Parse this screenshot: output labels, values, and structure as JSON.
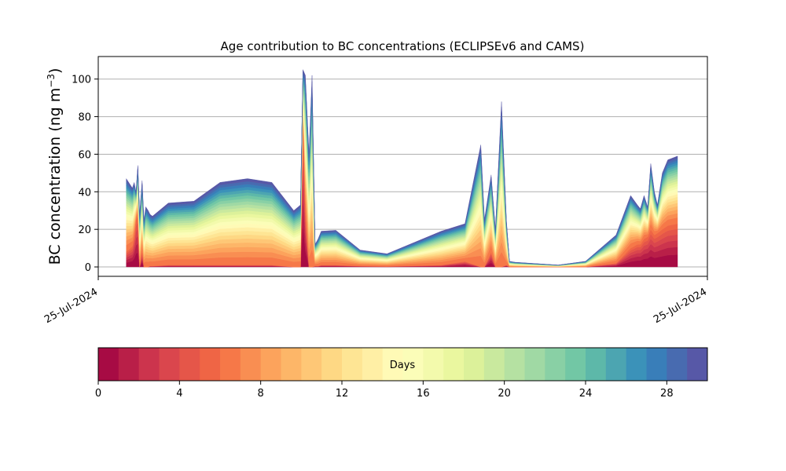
{
  "chart_data": {
    "type": "area",
    "title": "Age contribution to BC concentrations (ECLIPSEv6 and CAMS)",
    "ylabel": "BC concentration (ng m",
    "ylabel_superscript": "−3",
    "ylabel_close": ")",
    "xlabel": "",
    "ylim": [
      -5,
      112
    ],
    "yticks": [
      0,
      20,
      40,
      60,
      80,
      100
    ],
    "grid": "y",
    "x_tick_labels": [
      "25-Jul-2024",
      "25-Jul-2024"
    ],
    "colorbar": {
      "label": "Days",
      "vmin": 0,
      "vmax": 30,
      "ticks": [
        0,
        4,
        8,
        12,
        16,
        20,
        24,
        28
      ],
      "colormap": "Spectral",
      "levels": 30
    },
    "x": [
      0.046,
      0.056,
      0.059,
      0.062,
      0.065,
      0.068,
      0.072,
      0.075,
      0.078,
      0.082,
      0.085,
      0.089,
      0.115,
      0.157,
      0.2,
      0.245,
      0.285,
      0.321,
      0.332,
      0.336,
      0.34,
      0.346,
      0.351,
      0.356,
      0.361,
      0.366,
      0.39,
      0.43,
      0.474,
      0.563,
      0.602,
      0.628,
      0.634,
      0.645,
      0.652,
      0.662,
      0.67,
      0.675,
      0.684,
      0.755,
      0.8,
      0.85,
      0.874,
      0.885,
      0.89,
      0.896,
      0.902,
      0.907,
      0.913,
      0.918,
      0.926,
      0.935,
      0.951
    ],
    "total": [
      47,
      42,
      45,
      40,
      54,
      28,
      46,
      25,
      32,
      30,
      28,
      27,
      34,
      35,
      45,
      47,
      45,
      30,
      33,
      105,
      102,
      60,
      102,
      12,
      15,
      19,
      19.5,
      9,
      7,
      19,
      23,
      65,
      25,
      49,
      20,
      88,
      25,
      3,
      2.5,
      1,
      3,
      17,
      38,
      33,
      31,
      38,
      32,
      55,
      40,
      33,
      50,
      57,
      59
    ],
    "young": [
      8,
      11,
      16,
      25,
      27,
      0,
      9,
      0,
      0,
      0,
      0.5,
      0.5,
      1,
      1,
      1,
      1,
      1,
      0,
      0,
      80,
      30,
      0,
      0,
      0.5,
      0.5,
      1,
      1,
      0.5,
      0.3,
      1,
      3,
      0,
      0,
      8,
      0,
      0,
      1,
      0,
      0,
      0,
      0,
      2,
      10,
      12,
      12,
      15,
      16,
      20,
      17,
      18,
      20,
      22,
      23
    ]
  }
}
